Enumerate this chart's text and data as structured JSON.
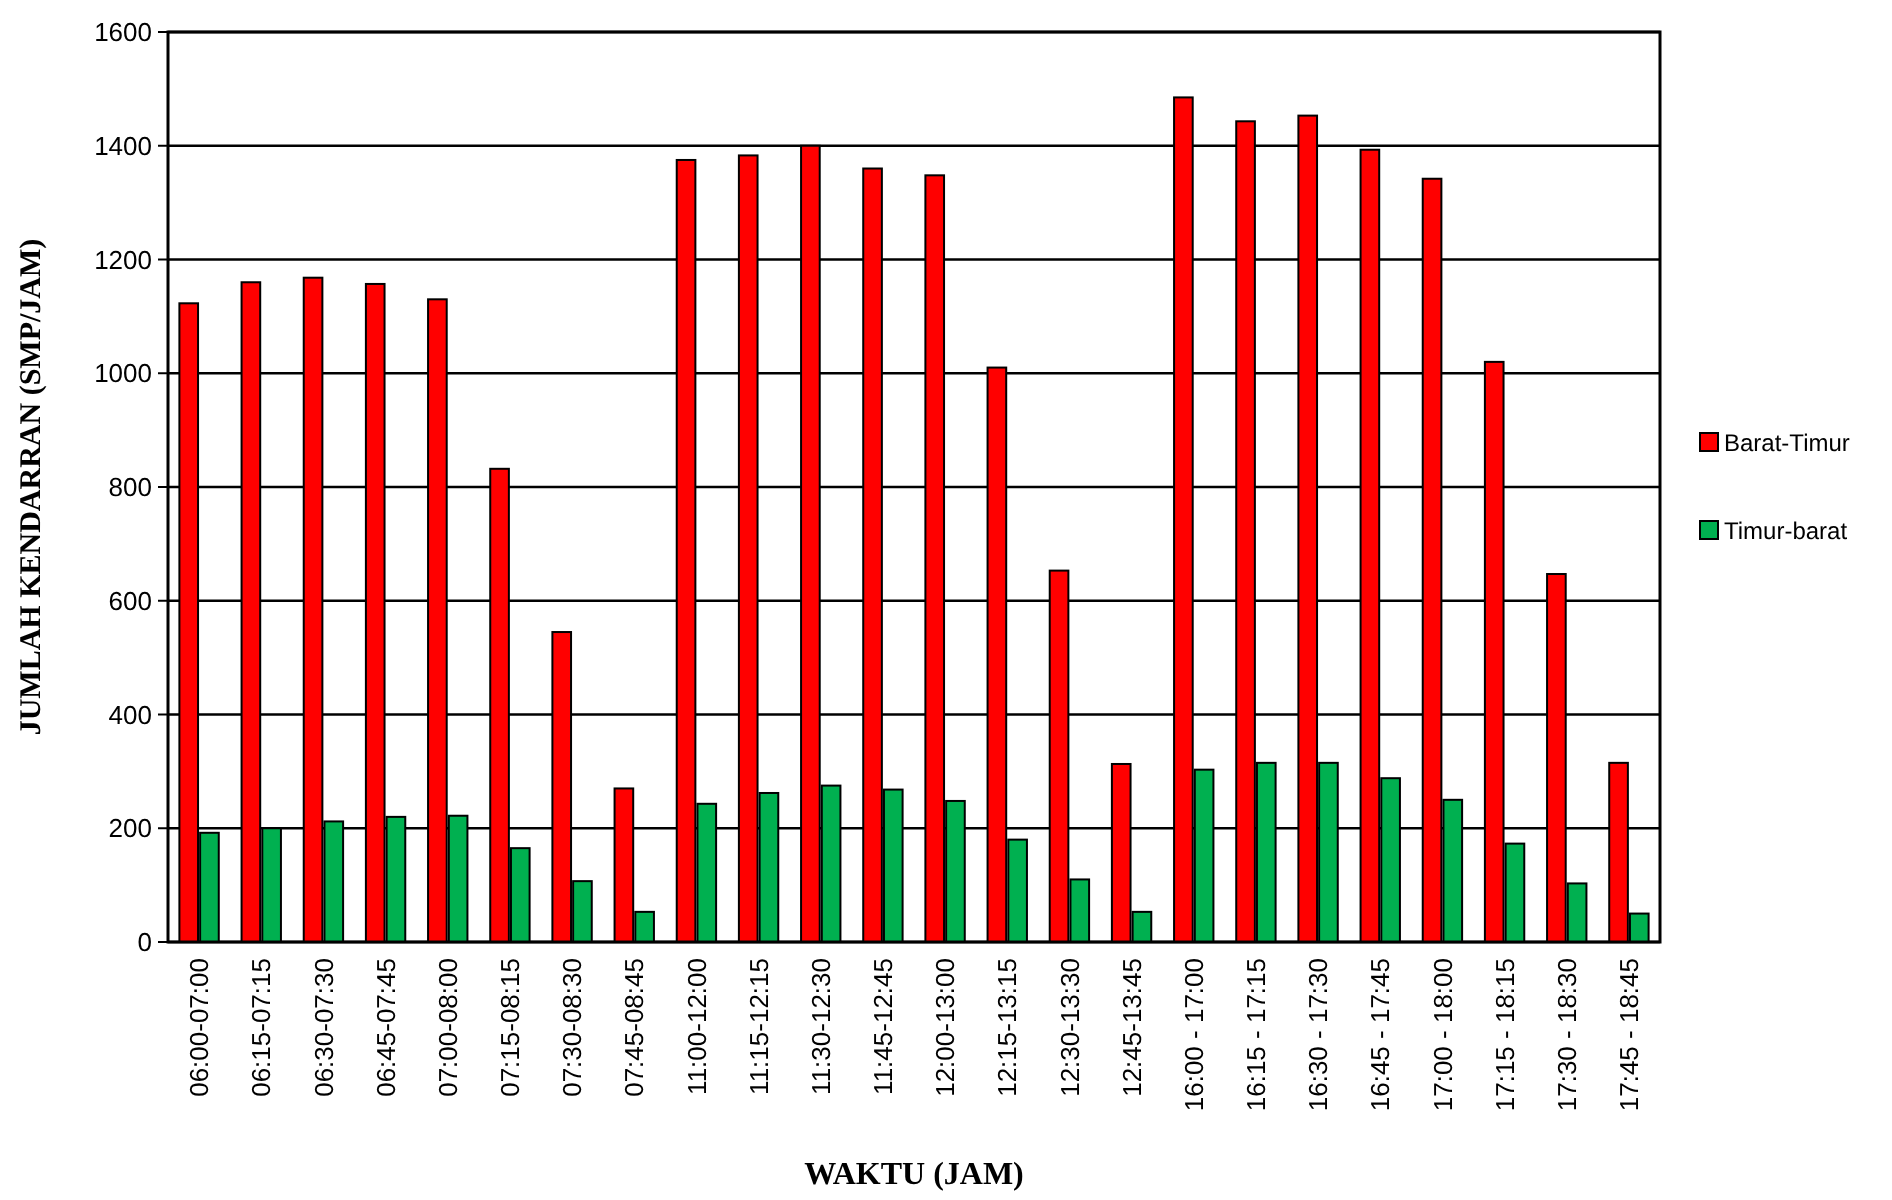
{
  "chart_data": {
    "type": "bar",
    "xlabel": "WAKTU (JAM)",
    "ylabel": "JUMLAH KENDARRAN (SMP/JAM)",
    "categories": [
      "06:00-07:00",
      "06:15-07:15",
      "06:30-07:30",
      "06:45-07:45",
      "07:00-08:00",
      "07:15-08:15",
      "07:30-08:30",
      "07:45-08:45",
      "11:00-12:00",
      "11:15-12:15",
      "11:30-12:30",
      "11:45-12:45",
      "12:00-13:00",
      "12:15-13:15",
      "12:30-13:30",
      "12:45-13:45",
      "16:00 - 17:00",
      "16:15 - 17:15",
      "16:30 - 17:30",
      "16:45 - 17:45",
      "17:00 - 18:00",
      "17:15 - 18:15",
      "17:30 - 18:30",
      "17:45 - 18:45"
    ],
    "series": [
      {
        "name": "Barat-Timur",
        "color": "#ff0000",
        "values": [
          1123,
          1160,
          1168,
          1157,
          1130,
          832,
          545,
          270,
          1375,
          1383,
          1400,
          1360,
          1348,
          1010,
          653,
          313,
          1485,
          1443,
          1453,
          1393,
          1342,
          1020,
          647,
          315
        ]
      },
      {
        "name": "Timur-barat",
        "color": "#00b050",
        "values": [
          192,
          200,
          212,
          220,
          222,
          165,
          107,
          53,
          243,
          262,
          275,
          268,
          248,
          180,
          110,
          53,
          303,
          315,
          315,
          288,
          250,
          173,
          103,
          50
        ]
      }
    ],
    "ylim": [
      0,
      1600
    ],
    "yticks": [
      0,
      200,
      400,
      600,
      800,
      1000,
      1200,
      1400,
      1600
    ],
    "grid": "y",
    "legend": "right"
  }
}
